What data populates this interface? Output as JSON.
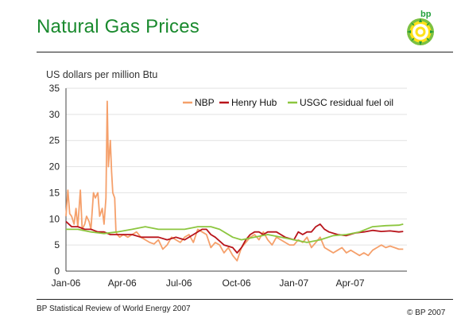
{
  "header": {
    "title": "Natural Gas Prices",
    "logo_text": "bp"
  },
  "footer": {
    "source": "BP Statistical Review of World Energy 2007",
    "copyright": "© BP 2007"
  },
  "colors": {
    "title": "#1a8a2e",
    "NBP": "#f5a06b",
    "Henry Hub": "#b8141b",
    "USGC residual fuel oil": "#8cc63f"
  },
  "chart_data": {
    "type": "line",
    "ylabel": "US dollars per million Btu",
    "ylim": [
      0,
      35
    ],
    "yticks": [
      0,
      5,
      10,
      15,
      20,
      25,
      30,
      35
    ],
    "xlim": [
      "2006-01-01",
      "2007-07-01"
    ],
    "xticks": [
      "2006-01-01",
      "2006-04-01",
      "2006-07-01",
      "2006-10-01",
      "2007-01-01",
      "2007-04-01"
    ],
    "xtick_labels": [
      "Jan-06",
      "Apr-06",
      "Jul-06",
      "Oct-06",
      "Jan-07",
      "Apr-07"
    ],
    "grid": "horizontal",
    "legend_position": "top-right",
    "series": [
      {
        "name": "NBP",
        "x": [
          "2006-01-01",
          "2006-01-04",
          "2006-01-07",
          "2006-01-10",
          "2006-01-14",
          "2006-01-17",
          "2006-01-20",
          "2006-01-24",
          "2006-01-27",
          "2006-01-31",
          "2006-02-03",
          "2006-02-07",
          "2006-02-10",
          "2006-02-14",
          "2006-02-17",
          "2006-02-21",
          "2006-02-24",
          "2006-02-28",
          "2006-03-03",
          "2006-03-06",
          "2006-03-08",
          "2006-03-10",
          "2006-03-13",
          "2006-03-15",
          "2006-03-17",
          "2006-03-20",
          "2006-03-22",
          "2006-03-24",
          "2006-03-28",
          "2006-04-03",
          "2006-04-10",
          "2006-04-17",
          "2006-04-24",
          "2006-05-01",
          "2006-05-08",
          "2006-05-15",
          "2006-05-22",
          "2006-05-29",
          "2006-06-05",
          "2006-06-12",
          "2006-06-19",
          "2006-06-26",
          "2006-07-03",
          "2006-07-10",
          "2006-07-17",
          "2006-07-24",
          "2006-07-31",
          "2006-08-07",
          "2006-08-14",
          "2006-08-21",
          "2006-08-28",
          "2006-09-04",
          "2006-09-11",
          "2006-09-18",
          "2006-09-25",
          "2006-10-02",
          "2006-10-09",
          "2006-10-16",
          "2006-10-23",
          "2006-10-30",
          "2006-11-06",
          "2006-11-13",
          "2006-11-20",
          "2006-11-27",
          "2006-12-04",
          "2006-12-11",
          "2006-12-18",
          "2006-12-25",
          "2007-01-01",
          "2007-01-08",
          "2007-01-15",
          "2007-01-22",
          "2007-01-29",
          "2007-02-05",
          "2007-02-12",
          "2007-02-19",
          "2007-02-26",
          "2007-03-05",
          "2007-03-12",
          "2007-03-19",
          "2007-03-26",
          "2007-04-02",
          "2007-04-09",
          "2007-04-16",
          "2007-04-23",
          "2007-04-30",
          "2007-05-07",
          "2007-05-14",
          "2007-05-21",
          "2007-05-28",
          "2007-06-04",
          "2007-06-11",
          "2007-06-18",
          "2007-06-25"
        ],
        "values": [
          10.5,
          15.5,
          11,
          10.5,
          9,
          12,
          8.5,
          15.5,
          8,
          9,
          10.5,
          9.5,
          8,
          15,
          14,
          15,
          10.5,
          12,
          9,
          14,
          32.5,
          20,
          25,
          19,
          15,
          14,
          7.5,
          7,
          6.5,
          7,
          6.5,
          7,
          7.5,
          6.5,
          6,
          5.5,
          5.2,
          6,
          4.2,
          5,
          6.5,
          6,
          5.5,
          6.5,
          7,
          5.5,
          8,
          7.5,
          7,
          4.5,
          5.5,
          5,
          3.5,
          4.5,
          3,
          2,
          4.5,
          5.5,
          6.5,
          7,
          6,
          7.5,
          6,
          5,
          6.5,
          6,
          5.5,
          5,
          5,
          6,
          5.5,
          6.5,
          4.5,
          5.5,
          6.5,
          4.5,
          4,
          3.5,
          4,
          4.5,
          3.5,
          4,
          3.5,
          3,
          3.5,
          3,
          4,
          4.5,
          5,
          4.5,
          4.8,
          4.5,
          4.2,
          4.2
        ]
      },
      {
        "name": "Henry Hub",
        "x": [
          "2006-01-01",
          "2006-01-10",
          "2006-01-20",
          "2006-01-31",
          "2006-02-10",
          "2006-02-21",
          "2006-03-03",
          "2006-03-13",
          "2006-03-24",
          "2006-04-03",
          "2006-04-17",
          "2006-05-01",
          "2006-05-15",
          "2006-05-29",
          "2006-06-12",
          "2006-06-26",
          "2006-07-10",
          "2006-07-24",
          "2006-08-07",
          "2006-08-14",
          "2006-08-21",
          "2006-08-28",
          "2006-09-11",
          "2006-09-25",
          "2006-10-02",
          "2006-10-09",
          "2006-10-16",
          "2006-10-23",
          "2006-10-30",
          "2006-11-06",
          "2006-11-13",
          "2006-11-20",
          "2006-12-04",
          "2006-12-11",
          "2006-12-18",
          "2007-01-01",
          "2007-01-08",
          "2007-01-15",
          "2007-01-22",
          "2007-01-29",
          "2007-02-05",
          "2007-02-12",
          "2007-02-19",
          "2007-02-26",
          "2007-03-12",
          "2007-03-26",
          "2007-04-09",
          "2007-04-23",
          "2007-05-07",
          "2007-05-21",
          "2007-06-04",
          "2007-06-18",
          "2007-06-25"
        ],
        "values": [
          9.5,
          8.5,
          8.5,
          8,
          8,
          7.5,
          7.5,
          7,
          7,
          7,
          7,
          6.5,
          6.5,
          6.5,
          6,
          6.5,
          6,
          7,
          8,
          8,
          7,
          6.5,
          5,
          4.5,
          3.5,
          4.5,
          6,
          7,
          7.5,
          7.5,
          7,
          7.5,
          7.5,
          7,
          6.5,
          6,
          7.5,
          7,
          7.5,
          7.5,
          8.5,
          9,
          8,
          7.5,
          7,
          6.8,
          7.3,
          7.5,
          7.8,
          7.6,
          7.7,
          7.5,
          7.6
        ]
      },
      {
        "name": "USGC residual fuel oil",
        "x": [
          "2006-01-01",
          "2006-01-20",
          "2006-02-10",
          "2006-03-03",
          "2006-03-24",
          "2006-04-17",
          "2006-05-08",
          "2006-05-29",
          "2006-06-19",
          "2006-07-10",
          "2006-07-31",
          "2006-08-21",
          "2006-09-04",
          "2006-09-25",
          "2006-10-09",
          "2006-10-30",
          "2006-11-20",
          "2006-12-11",
          "2007-01-01",
          "2007-01-22",
          "2007-02-12",
          "2007-03-05",
          "2007-03-26",
          "2007-04-16",
          "2007-05-07",
          "2007-05-28",
          "2007-06-18",
          "2007-06-25"
        ],
        "values": [
          8,
          8,
          7.5,
          7.2,
          7.5,
          8,
          8.5,
          8,
          8,
          8,
          8.5,
          8.5,
          8,
          6.5,
          6,
          6.5,
          7,
          6.5,
          6,
          5.5,
          6,
          6.8,
          7,
          7.5,
          8.5,
          8.7,
          8.8,
          9
        ]
      }
    ]
  }
}
